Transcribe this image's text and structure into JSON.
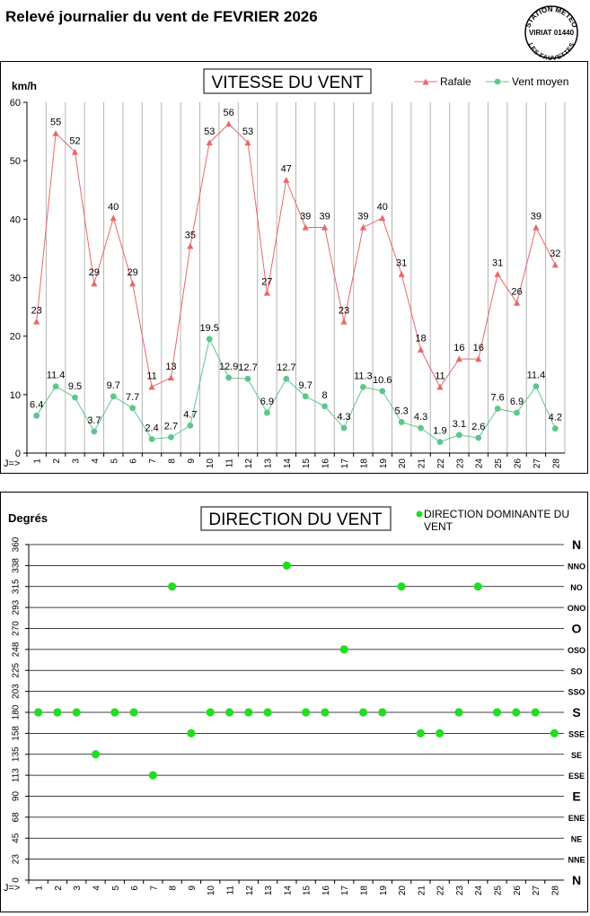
{
  "page": {
    "title": "Relevé journalier du vent de FEVRIER 2026",
    "stamp": {
      "line1": "STATION METEO",
      "line2": "VIRIAT 01440",
      "line3": "LES FAUVETTES"
    }
  },
  "chart_data": [
    {
      "type": "line",
      "title": "VITESSE DU VENT",
      "ylabel": "km/h",
      "x_prefix": "J=>",
      "ylim": [
        0,
        60
      ],
      "yticks": [
        0,
        10,
        20,
        30,
        40,
        50,
        60
      ],
      "x": [
        "1",
        "2",
        "3",
        "4",
        "5",
        "6",
        "7",
        "8",
        "9",
        "10",
        "11",
        "12",
        "13",
        "14",
        "15",
        "16",
        "17",
        "18",
        "19",
        "20",
        "21",
        "22",
        "23",
        "24",
        "25",
        "26",
        "27",
        "28"
      ],
      "grid": "vertical",
      "legend_position": "top-right",
      "series": [
        {
          "name": "Rafale",
          "color": "#e8686a",
          "marker": "triangle",
          "values": [
            22.5,
            54.7,
            51.5,
            29.0,
            40.2,
            29.0,
            11.3,
            12.9,
            35.4,
            53.1,
            56.3,
            53.1,
            27.4,
            46.7,
            38.6,
            38.6,
            22.5,
            38.6,
            40.2,
            30.6,
            17.7,
            11.3,
            16.1,
            16.1,
            30.6,
            25.7,
            38.6,
            32.2
          ],
          "labels": [
            "23",
            "55",
            "52",
            "29",
            "40",
            "29",
            "11",
            "13",
            "35",
            "53",
            "56",
            "53",
            "27",
            "47",
            "39",
            "39",
            "23",
            "39",
            "40",
            "31",
            "18",
            "11",
            "16",
            "16",
            "31",
            "26",
            "39",
            "32"
          ]
        },
        {
          "name": "Vent moyen",
          "color": "#5ec58c",
          "marker": "circle",
          "values": [
            6.4,
            11.4,
            9.5,
            3.7,
            9.7,
            7.7,
            2.4,
            2.7,
            4.7,
            19.5,
            12.9,
            12.7,
            6.9,
            12.7,
            9.7,
            8.0,
            4.3,
            11.3,
            10.6,
            5.3,
            4.3,
            1.9,
            3.1,
            2.6,
            7.6,
            6.9,
            11.4,
            4.2
          ],
          "labels": [
            "6.4",
            "11.4",
            "9.5",
            "3.7",
            "9.7",
            "7.7",
            "2.4",
            "2.7",
            "4.7",
            "19.5",
            "12.9",
            "12.7",
            "6.9",
            "12.7",
            "9.7",
            "8",
            "4.3",
            "11.3",
            "10.6",
            "5.3",
            "4.3",
            "1.9",
            "3.1",
            "2.6",
            "7.6",
            "6.9",
            "11.4",
            "4.2"
          ]
        }
      ]
    },
    {
      "type": "scatter",
      "title": "DIRECTION DU VENT",
      "ylabel": "Degrés",
      "x_prefix": "J=>",
      "ylim": [
        0,
        360
      ],
      "yticks": [
        "0",
        "23",
        "45",
        "68",
        "90",
        "113",
        "135",
        "158",
        "180",
        "203",
        "225",
        "248",
        "270",
        "293",
        "315",
        "338",
        "360"
      ],
      "compass": [
        "N",
        "NNE",
        "NE",
        "ENE",
        "E",
        "ESE",
        "SE",
        "SSE",
        "S",
        "SSO",
        "SO",
        "OSO",
        "O",
        "ONO",
        "NO",
        "NNO",
        "N"
      ],
      "x": [
        "1",
        "2",
        "3",
        "4",
        "5",
        "6",
        "7",
        "8",
        "9",
        "10",
        "11",
        "12",
        "13",
        "14",
        "15",
        "16",
        "17",
        "18",
        "19",
        "20",
        "21",
        "22",
        "23",
        "24",
        "25",
        "26",
        "27",
        "28"
      ],
      "grid": "horizontal",
      "legend_position": "top-right",
      "series": [
        {
          "name": "DIRECTION DOMINANTE DU VENT",
          "color": "#22dd22",
          "values": [
            180,
            180,
            180,
            135,
            180,
            180,
            112.5,
            315,
            157.5,
            180,
            180,
            180,
            180,
            337.5,
            180,
            180,
            247.5,
            180,
            180,
            315,
            157.5,
            157.5,
            180,
            315,
            180,
            180,
            180,
            157.5
          ]
        }
      ]
    }
  ]
}
